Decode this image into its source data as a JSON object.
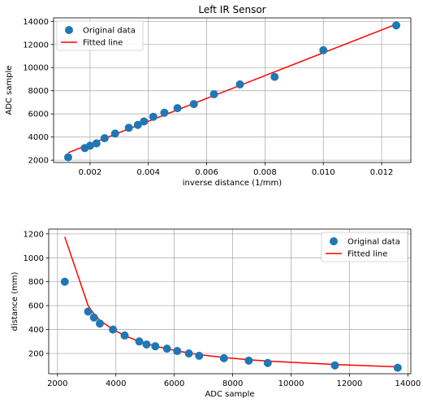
{
  "chart_data": [
    {
      "type": "scatter",
      "title": "Left IR Sensor",
      "xlabel": "inverse distance (1/mm)",
      "ylabel": "ADC sample",
      "xlim": [
        0.00075,
        0.013
      ],
      "ylim": [
        1800,
        14300
      ],
      "xticks": [
        0.002,
        0.004,
        0.006,
        0.008,
        0.01,
        0.012
      ],
      "xtick_labels": [
        "0.002",
        "0.004",
        "0.006",
        "0.008",
        "0.010",
        "0.012"
      ],
      "yticks": [
        2000,
        4000,
        6000,
        8000,
        10000,
        12000,
        14000
      ],
      "ytick_labels": [
        "2000",
        "4000",
        "6000",
        "8000",
        "10000",
        "12000",
        "14000"
      ],
      "grid": true,
      "legend": "upper left",
      "series": [
        {
          "name": "Original data",
          "kind": "scatter",
          "color": "#1f77b4",
          "x": [
            0.00125,
            0.00182,
            0.002,
            0.00222,
            0.0025,
            0.00286,
            0.00333,
            0.00364,
            0.00385,
            0.00417,
            0.00455,
            0.005,
            0.00556,
            0.00625,
            0.00714,
            0.00833,
            0.01,
            0.0125
          ],
          "y": [
            2250,
            3050,
            3250,
            3450,
            3900,
            4300,
            4800,
            5050,
            5350,
            5750,
            6100,
            6500,
            6850,
            7700,
            8550,
            9200,
            11500,
            13650
          ]
        },
        {
          "name": "Fitted line",
          "kind": "line",
          "color": "#ff0000",
          "x": [
            0.00125,
            0.0125
          ],
          "y": [
            2650,
            13750
          ]
        }
      ]
    },
    {
      "type": "scatter",
      "title": "",
      "xlabel": "ADC sample",
      "ylabel": "distance (mm)",
      "xlim": [
        1700,
        14100
      ],
      "ylim": [
        30,
        1240
      ],
      "xticks": [
        2000,
        4000,
        6000,
        8000,
        10000,
        12000,
        14000
      ],
      "xtick_labels": [
        "2000",
        "4000",
        "6000",
        "8000",
        "10000",
        "12000",
        "14000"
      ],
      "yticks": [
        200,
        400,
        600,
        800,
        1000,
        1200
      ],
      "ytick_labels": [
        "200",
        "400",
        "600",
        "800",
        "1000",
        "1200"
      ],
      "grid": true,
      "legend": "upper right",
      "series": [
        {
          "name": "Original data",
          "kind": "scatter",
          "color": "#1f77b4",
          "x": [
            2250,
            3050,
            3250,
            3450,
            3900,
            4300,
            4800,
            5050,
            5350,
            5750,
            6100,
            6500,
            6850,
            7700,
            8550,
            9200,
            11500,
            13650
          ],
          "y": [
            800,
            550,
            500,
            450,
            400,
            350,
            300,
            275,
            260,
            240,
            220,
            200,
            180,
            160,
            140,
            120,
            100,
            80
          ]
        },
        {
          "name": "Fitted line",
          "kind": "line",
          "color": "#ff0000",
          "x": [
            2250,
            3050,
            3250,
            3450,
            3900,
            4300,
            4800,
            5050,
            5350,
            5750,
            6100,
            6500,
            6850,
            7700,
            8550,
            9200,
            11500,
            13650
          ],
          "y": [
            1175,
            600,
            530,
            478,
            400,
            350,
            300,
            285,
            260,
            240,
            220,
            205,
            190,
            166,
            147,
            136,
            107,
            88
          ]
        }
      ]
    }
  ]
}
